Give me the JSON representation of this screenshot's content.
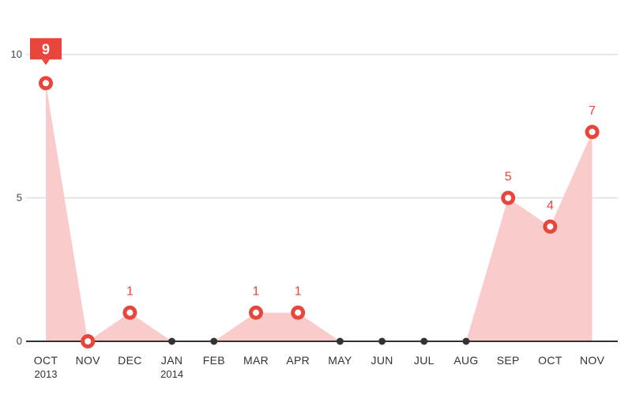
{
  "chart_data": {
    "type": "area",
    "categories": [
      "OCT",
      "NOV",
      "DEC",
      "JAN",
      "FEB",
      "MAR",
      "APR",
      "MAY",
      "JUN",
      "JUL",
      "AUG",
      "SEP",
      "OCT",
      "NOV"
    ],
    "category_sublabels": [
      "2013",
      "",
      "",
      "2014",
      "",
      "",
      "",
      "",
      "",
      "",
      "",
      "",
      "",
      ""
    ],
    "values": [
      9,
      0,
      1,
      0,
      0,
      1,
      1,
      0,
      0,
      0,
      0,
      5,
      4,
      7.3
    ],
    "data_labels": [
      "9",
      "",
      "1",
      "",
      "",
      "1",
      "1",
      "",
      "",
      "",
      "",
      "5",
      "4",
      "7"
    ],
    "highlight": [
      true,
      true,
      true,
      false,
      false,
      true,
      true,
      false,
      false,
      false,
      false,
      true,
      true,
      true
    ],
    "highlight_index": 0,
    "yticks": [
      0,
      5,
      10
    ],
    "ylim": [
      0,
      10
    ],
    "grid": true,
    "title": "",
    "xlabel": "",
    "ylabel": "",
    "colors": {
      "fill": "#f9cccb",
      "accent": "#e8453c",
      "marker_inner": "#ffffff",
      "zero_marker": "#333333",
      "gridline": "#d0d0d0",
      "baseline": "#333333"
    }
  }
}
